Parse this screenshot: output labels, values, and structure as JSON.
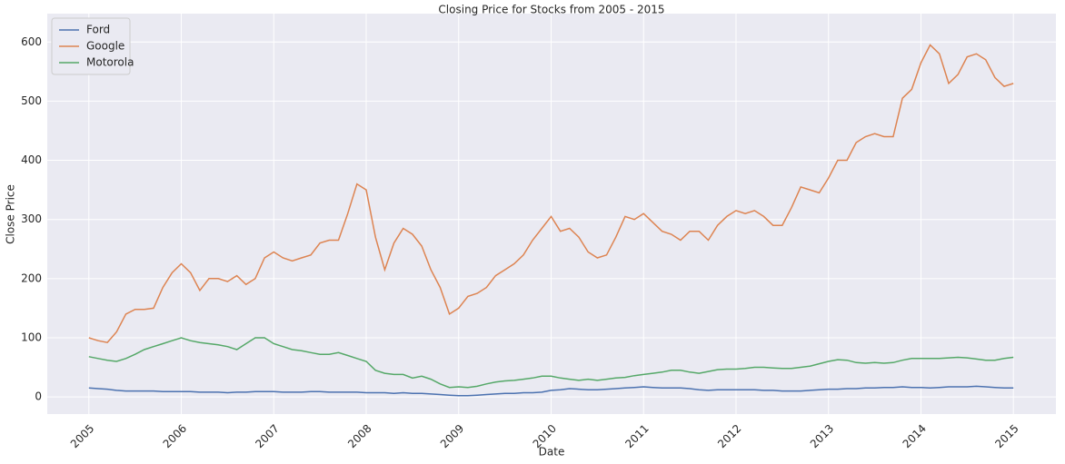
{
  "chart_data": {
    "type": "line",
    "title": "Closing Price for Stocks from 2005 - 2015",
    "xlabel": "Date",
    "ylabel": "Close Price",
    "x": [
      2005,
      2005.1,
      2005.2,
      2005.3,
      2005.4,
      2005.5,
      2005.6,
      2005.7,
      2005.8,
      2005.9,
      2006,
      2006.1,
      2006.2,
      2006.3,
      2006.4,
      2006.5,
      2006.6,
      2006.7,
      2006.8,
      2006.9,
      2007,
      2007.1,
      2007.2,
      2007.3,
      2007.4,
      2007.5,
      2007.6,
      2007.7,
      2007.8,
      2007.9,
      2008,
      2008.1,
      2008.2,
      2008.3,
      2008.4,
      2008.5,
      2008.6,
      2008.7,
      2008.8,
      2008.9,
      2009,
      2009.1,
      2009.2,
      2009.3,
      2009.4,
      2009.5,
      2009.6,
      2009.7,
      2009.8,
      2009.9,
      2010,
      2010.1,
      2010.2,
      2010.3,
      2010.4,
      2010.5,
      2010.6,
      2010.7,
      2010.8,
      2010.9,
      2011,
      2011.1,
      2011.2,
      2011.3,
      2011.4,
      2011.5,
      2011.6,
      2011.7,
      2011.8,
      2011.9,
      2012,
      2012.1,
      2012.2,
      2012.3,
      2012.4,
      2012.5,
      2012.6,
      2012.7,
      2012.8,
      2012.9,
      2013,
      2013.1,
      2013.2,
      2013.3,
      2013.4,
      2013.5,
      2013.6,
      2013.7,
      2013.8,
      2013.9,
      2014,
      2014.1,
      2014.2,
      2014.3,
      2014.4,
      2014.5,
      2014.6,
      2014.7,
      2014.8,
      2014.9,
      2015
    ],
    "series": [
      {
        "name": "Ford",
        "color": "#4c72b0",
        "values": [
          15,
          14,
          13,
          11,
          10,
          10,
          10,
          10,
          9,
          9,
          9,
          9,
          8,
          8,
          8,
          7,
          8,
          8,
          9,
          9,
          9,
          8,
          8,
          8,
          9,
          9,
          8,
          8,
          8,
          8,
          7,
          7,
          7,
          6,
          7,
          6,
          6,
          5,
          4,
          3,
          2,
          2,
          3,
          4,
          5,
          6,
          6,
          7,
          7,
          8,
          11,
          12,
          14,
          13,
          12,
          12,
          13,
          14,
          15,
          16,
          17,
          16,
          15,
          15,
          15,
          14,
          12,
          11,
          12,
          12,
          12,
          12,
          12,
          11,
          11,
          10,
          10,
          10,
          11,
          12,
          13,
          13,
          14,
          14,
          15,
          15,
          16,
          16,
          17,
          16,
          16,
          15,
          16,
          17,
          17,
          17,
          18,
          17,
          16,
          15,
          15
        ]
      },
      {
        "name": "Google",
        "color": "#dd8452",
        "values": [
          100,
          95,
          92,
          110,
          140,
          148,
          148,
          150,
          185,
          210,
          225,
          210,
          180,
          200,
          200,
          195,
          205,
          190,
          200,
          235,
          245,
          235,
          230,
          235,
          240,
          260,
          265,
          265,
          310,
          360,
          350,
          270,
          215,
          260,
          285,
          275,
          255,
          215,
          185,
          140,
          150,
          170,
          175,
          185,
          205,
          215,
          225,
          240,
          265,
          285,
          305,
          280,
          285,
          270,
          245,
          235,
          240,
          270,
          305,
          300,
          310,
          295,
          280,
          275,
          265,
          280,
          280,
          265,
          290,
          305,
          315,
          310,
          315,
          305,
          290,
          290,
          320,
          355,
          350,
          345,
          370,
          400,
          400,
          430,
          440,
          445,
          440,
          440,
          505,
          520,
          565,
          595,
          580,
          530,
          545,
          575,
          580,
          570,
          540,
          525,
          530
        ]
      },
      {
        "name": "Motorola",
        "color": "#55a868",
        "values": [
          68,
          65,
          62,
          60,
          65,
          72,
          80,
          85,
          90,
          95,
          100,
          95,
          92,
          90,
          88,
          85,
          80,
          90,
          100,
          100,
          90,
          85,
          80,
          78,
          75,
          72,
          72,
          75,
          70,
          65,
          60,
          45,
          40,
          38,
          38,
          32,
          35,
          30,
          22,
          16,
          17,
          16,
          18,
          22,
          25,
          27,
          28,
          30,
          32,
          35,
          35,
          32,
          30,
          28,
          30,
          28,
          30,
          32,
          33,
          36,
          38,
          40,
          42,
          45,
          45,
          42,
          40,
          43,
          46,
          47,
          47,
          48,
          50,
          50,
          49,
          48,
          48,
          50,
          52,
          56,
          60,
          63,
          62,
          58,
          57,
          58,
          57,
          58,
          62,
          65,
          65,
          65,
          65,
          66,
          67,
          66,
          64,
          62,
          62,
          65,
          67
        ]
      }
    ],
    "xlim": [
      2004.55,
      2015.46
    ],
    "xticks": [
      2005,
      2006,
      2007,
      2008,
      2009,
      2010,
      2011,
      2012,
      2013,
      2014,
      2015
    ],
    "ylim": [
      -29,
      648
    ],
    "yticks": [
      0,
      100,
      200,
      300,
      400,
      500,
      600
    ],
    "grid": true,
    "legend": "upper left"
  }
}
